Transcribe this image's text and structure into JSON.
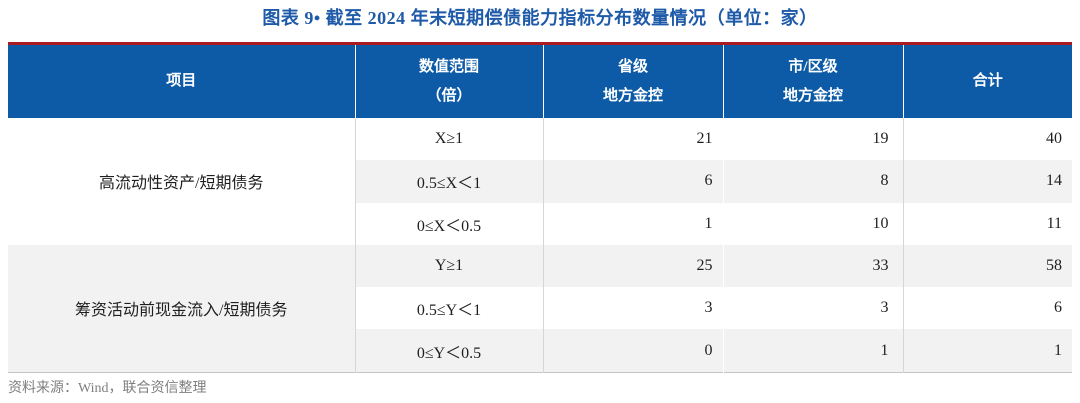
{
  "title": "图表 9• 截至 2024 年末短期偿债能力指标分布数量情况（单位：家）",
  "colors": {
    "title_blue": "#1E5AA8",
    "header_blue": "#0D5BA7",
    "top_rule_red": "#AA1C24",
    "stripe_gray": "#F2F2F2",
    "grid_gray": "#D6D6D6",
    "source_gray": "#7F7F7F"
  },
  "table": {
    "headers": {
      "item": "项目",
      "range_line1": "数值范围",
      "range_line2": "（倍）",
      "provincial_line1": "省级",
      "provincial_line2": "地方金控",
      "city_line1": "市/区级",
      "city_line2": "地方金控",
      "total": "合计"
    },
    "groups": [
      {
        "item": "高流动性资产/短期债务",
        "rows": [
          {
            "range": "X≥1",
            "provincial": "21",
            "city": "19",
            "total": "40"
          },
          {
            "range": "0.5≤X＜1",
            "provincial": "6",
            "city": "8",
            "total": "14"
          },
          {
            "range": "0≤X＜0.5",
            "provincial": "1",
            "city": "10",
            "total": "11"
          }
        ]
      },
      {
        "item": "筹资活动前现金流入/短期债务",
        "rows": [
          {
            "range": "Y≥1",
            "provincial": "25",
            "city": "33",
            "total": "58"
          },
          {
            "range": "0.5≤Y＜1",
            "provincial": "3",
            "city": "3",
            "total": "6"
          },
          {
            "range": "0≤Y＜0.5",
            "provincial": "0",
            "city": "1",
            "total": "1"
          }
        ]
      }
    ]
  },
  "footer": {
    "source": "资料来源：Wind，联合资信整理"
  }
}
